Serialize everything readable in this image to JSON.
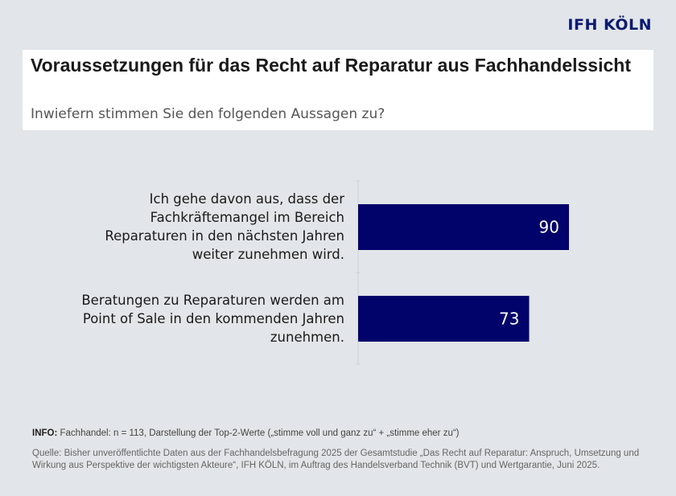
{
  "logo": "IFH KÖLN",
  "chart_data": {
    "type": "bar",
    "orientation": "horizontal",
    "title": "Voraussetzungen für das Recht auf Reparatur aus Fachhandelssicht",
    "subtitle": "Inwiefern stimmen Sie den folgenden Aussagen zu?",
    "categories": [
      "Ich gehe davon aus, dass der Fachkräftemangel im Bereich Reparaturen in den nächsten Jahren weiter zunehmen wird.",
      "Beratungen zu Reparaturen werden am Point of Sale in den kommenden Jahren zunehmen."
    ],
    "values": [
      90,
      73
    ],
    "xlim": [
      0,
      100
    ],
    "grid": false,
    "bar_color": "#02026b",
    "label_color": "#ffffff"
  },
  "footer": {
    "info_label": "INFO:",
    "info_text": " Fachhandel: n = 113, Darstellung der Top-2-Werte („stimme voll und ganz zu“ + „stimme eher zu“)",
    "source": "Quelle: Bisher unveröffentlichte Daten aus der Fachhandelsbefragung 2025 der Gesamtstudie „Das Recht auf Reparatur: Anspruch, Umsetzung und Wirkung aus Perspektive der wichtigsten Akteure“, IFH KÖLN, im Auftrag des Handelsverband Technik (BVT) und Wertgarantie, Juni 2025."
  }
}
